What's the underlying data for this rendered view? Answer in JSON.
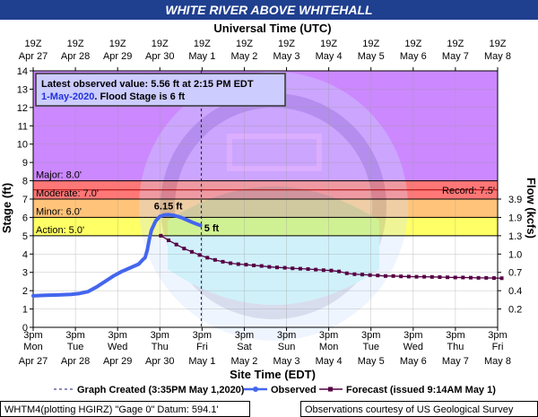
{
  "title": "WHITE RIVER ABOVE WHITEHALL",
  "top_axis_title": "Universal Time (UTC)",
  "bottom_axis_title": "Site Time (EDT)",
  "left_axis_title": "Stage (ft)",
  "right_axis_title": "Flow (kcfs)",
  "info_box": {
    "line1": "Latest observed value: 5.56 ft at 2:15 PM EDT",
    "line2_date": "1-May-2020",
    "line2_rest": ". Flood Stage is 6 ft"
  },
  "flood_categories": [
    {
      "name": "Major",
      "label": "Major: 8.0'",
      "from": 8.0,
      "to": 14.0,
      "color": "#cc88ff"
    },
    {
      "name": "Moderate",
      "label": "Moderate: 7.0'",
      "from": 7.0,
      "to": 8.0,
      "color": "#ff7777"
    },
    {
      "name": "Minor",
      "label": "Minor: 6.0'",
      "from": 6.0,
      "to": 7.0,
      "color": "#ffc47a"
    },
    {
      "name": "Action",
      "label": "Action: 5.0'",
      "from": 5.0,
      "to": 6.0,
      "color": "#ffff66"
    }
  ],
  "record_label": "Record: 7.5'",
  "record_value": 7.5,
  "peak_label": "6.15 ft",
  "forecast_start_label": "5 ft",
  "legend": {
    "created": "Graph Created (3:35PM May 1,2020)",
    "observed": "Observed",
    "forecast": "Forecast (issued 9:14AM May 1)"
  },
  "footer_left": "WHTM4(plotting HGIRZ) \"Gage 0\" Datum:  594.1'",
  "footer_right": "Observations courtesy of US Geological Survey",
  "colors": {
    "observed": "#4466ee",
    "forecast": "#550044",
    "title_bg": "#1f3f8f",
    "axis_title": "#1a1a6e"
  },
  "chart_data": {
    "type": "line",
    "title": "WHITE RIVER ABOVE WHITEHALL",
    "xlabel": "Site Time (EDT)",
    "ylabel": "Stage (ft)",
    "y2label": "Flow (kcfs)",
    "ylim": [
      0,
      14
    ],
    "xlim_days": [
      "Apr 27 3pm",
      "May 8 3pm"
    ],
    "x_unit": "days after Apr 27 3pm EDT",
    "grid": true,
    "left_ticks": [
      "0",
      "1",
      "2",
      "3",
      "4",
      "5",
      "6",
      "7",
      "8",
      "9",
      "10",
      "11",
      "12",
      "13",
      "14"
    ],
    "right_ticks": [
      {
        "stage": 1.0,
        "label": "0.2"
      },
      {
        "stage": 2.0,
        "label": "0.4"
      },
      {
        "stage": 3.0,
        "label": "0.7"
      },
      {
        "stage": 4.0,
        "label": "1.0"
      },
      {
        "stage": 5.0,
        "label": "1.3"
      },
      {
        "stage": 6.0,
        "label": "1.9"
      },
      {
        "stage": 7.0,
        "label": "3.9"
      }
    ],
    "top_ticks": [
      {
        "t": "19Z",
        "d": "Apr 27"
      },
      {
        "t": "19Z",
        "d": "Apr 28"
      },
      {
        "t": "19Z",
        "d": "Apr 29"
      },
      {
        "t": "19Z",
        "d": "Apr 30"
      },
      {
        "t": "19Z",
        "d": "May 1"
      },
      {
        "t": "19Z",
        "d": "May 2"
      },
      {
        "t": "19Z",
        "d": "May 3"
      },
      {
        "t": "19Z",
        "d": "May 4"
      },
      {
        "t": "19Z",
        "d": "May 5"
      },
      {
        "t": "19Z",
        "d": "May 6"
      },
      {
        "t": "19Z",
        "d": "May 7"
      },
      {
        "t": "19Z",
        "d": "May 8"
      }
    ],
    "bottom_ticks": [
      {
        "t": "3pm",
        "d": "Mon"
      },
      {
        "t": "3pm",
        "d": "Tue"
      },
      {
        "t": "3pm",
        "d": "Wed"
      },
      {
        "t": "3pm",
        "d": "Thu"
      },
      {
        "t": "3pm",
        "d": "Fri"
      },
      {
        "t": "3pm",
        "d": "Sat"
      },
      {
        "t": "3pm",
        "d": "Sun"
      },
      {
        "t": "3pm",
        "d": "Mon"
      },
      {
        "t": "3pm",
        "d": "Tue"
      },
      {
        "t": "3pm",
        "d": "Wed"
      },
      {
        "t": "3pm",
        "d": "Thu"
      },
      {
        "t": "3pm",
        "d": "Fri"
      }
    ],
    "bottom_dates": [
      "Apr 27",
      "Apr 28",
      "Apr 29",
      "Apr 30",
      "May 1",
      "May 2",
      "May 3",
      "May 4",
      "May 5",
      "May 6",
      "May 7",
      "May 8"
    ],
    "graph_created_x": 3.98,
    "series": [
      {
        "name": "Observed",
        "points": [
          [
            0.0,
            1.72
          ],
          [
            0.3,
            1.75
          ],
          [
            0.6,
            1.77
          ],
          [
            0.9,
            1.8
          ],
          [
            1.1,
            1.85
          ],
          [
            1.3,
            1.95
          ],
          [
            1.5,
            2.2
          ],
          [
            1.7,
            2.5
          ],
          [
            1.9,
            2.8
          ],
          [
            2.1,
            3.05
          ],
          [
            2.3,
            3.25
          ],
          [
            2.5,
            3.45
          ],
          [
            2.6,
            3.7
          ],
          [
            2.65,
            3.8
          ],
          [
            2.7,
            4.2
          ],
          [
            2.75,
            4.8
          ],
          [
            2.8,
            5.3
          ],
          [
            2.9,
            5.8
          ],
          [
            3.0,
            6.05
          ],
          [
            3.1,
            6.13
          ],
          [
            3.2,
            6.15
          ],
          [
            3.35,
            6.1
          ],
          [
            3.5,
            6.0
          ],
          [
            3.65,
            5.85
          ],
          [
            3.8,
            5.7
          ],
          [
            3.96,
            5.56
          ]
        ]
      },
      {
        "name": "Forecast",
        "points": [
          [
            4.12,
            5.0
          ],
          [
            4.37,
            4.75
          ],
          [
            4.62,
            4.52
          ],
          [
            4.87,
            4.3
          ],
          [
            5.12,
            4.12
          ],
          [
            5.37,
            3.95
          ],
          [
            5.62,
            3.8
          ],
          [
            5.87,
            3.68
          ],
          [
            6.12,
            3.58
          ],
          [
            6.37,
            3.5
          ],
          [
            6.62,
            3.45
          ],
          [
            6.87,
            3.42
          ],
          [
            7.12,
            3.38
          ],
          [
            7.37,
            3.35
          ],
          [
            7.62,
            3.3
          ],
          [
            7.87,
            3.27
          ],
          [
            8.12,
            3.25
          ],
          [
            8.37,
            3.22
          ],
          [
            8.62,
            3.2
          ],
          [
            8.87,
            3.18
          ],
          [
            9.12,
            3.15
          ],
          [
            9.37,
            3.12
          ],
          [
            9.62,
            3.1
          ],
          [
            9.87,
            3.05
          ],
          [
            10.12,
            2.95
          ],
          [
            10.37,
            2.9
          ],
          [
            10.62,
            2.88
          ],
          [
            10.87,
            2.85
          ],
          [
            11.12,
            2.83
          ],
          [
            11.37,
            2.8
          ],
          [
            11.62,
            2.8
          ],
          [
            11.87,
            2.78
          ],
          [
            12.12,
            2.77
          ],
          [
            12.37,
            2.76
          ],
          [
            12.62,
            2.76
          ],
          [
            12.87,
            2.75
          ],
          [
            13.12,
            2.74
          ],
          [
            13.37,
            2.73
          ],
          [
            13.62,
            2.72
          ],
          [
            13.87,
            2.72
          ],
          [
            14.12,
            2.71
          ],
          [
            14.37,
            2.7
          ],
          [
            14.62,
            2.7
          ],
          [
            14.87,
            2.69
          ],
          [
            15.12,
            2.68
          ]
        ]
      }
    ]
  }
}
